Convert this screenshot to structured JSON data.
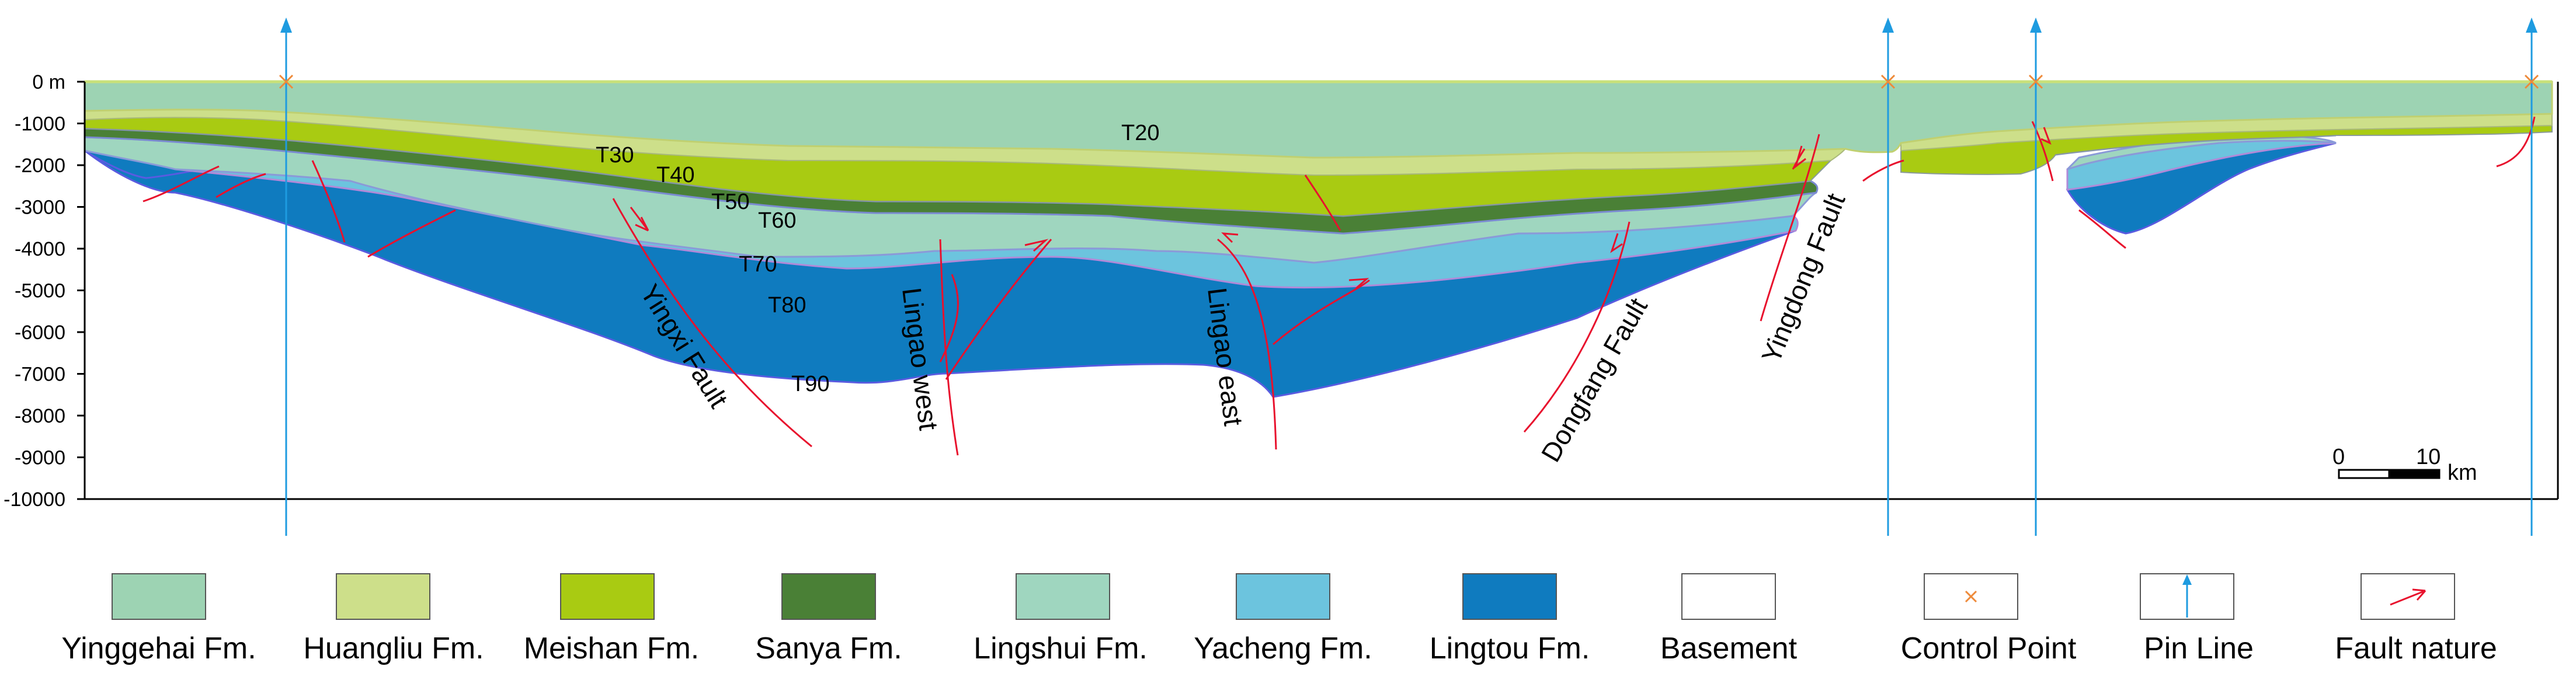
{
  "depth_axis": {
    "labels": [
      "0 m",
      "-1000",
      "-2000",
      "-3000",
      "-4000",
      "-5000",
      "-6000",
      "-7000",
      "-8000",
      "-9000",
      "-10000"
    ]
  },
  "horizons": [
    "T20",
    "T30",
    "T40",
    "T50",
    "T60",
    "T70",
    "T80",
    "T90"
  ],
  "faults": [
    "Yingxi Fault",
    "Lingao west",
    "Lingao east",
    "Dongfang Fault",
    "Yingdong Fault"
  ],
  "scale_bar": {
    "zero": "0",
    "ten": "10",
    "unit": "km"
  },
  "legend": [
    {
      "label": "Yinggehai Fm.",
      "color": "#9dd3b3"
    },
    {
      "label": "Huangliu Fm.",
      "color": "#cddf8a"
    },
    {
      "label": "Meishan Fm.",
      "color": "#a9cb12"
    },
    {
      "label": "Sanya Fm.",
      "color": "#4a8036"
    },
    {
      "label": "Lingshui Fm.",
      "color": "#9fd6bf"
    },
    {
      "label": "Yacheng Fm.",
      "color": "#6cc4de"
    },
    {
      "label": "Lingtou Fm.",
      "color": "#0f7bbf"
    },
    {
      "label": "Basement",
      "color": "#ffffff"
    },
    {
      "label": "Control Point",
      "color": "#ee8a3a"
    },
    {
      "label": "Pin Line",
      "color": "#1e9be0"
    },
    {
      "label": "Fault nature",
      "color": "#e8112d"
    }
  ]
}
